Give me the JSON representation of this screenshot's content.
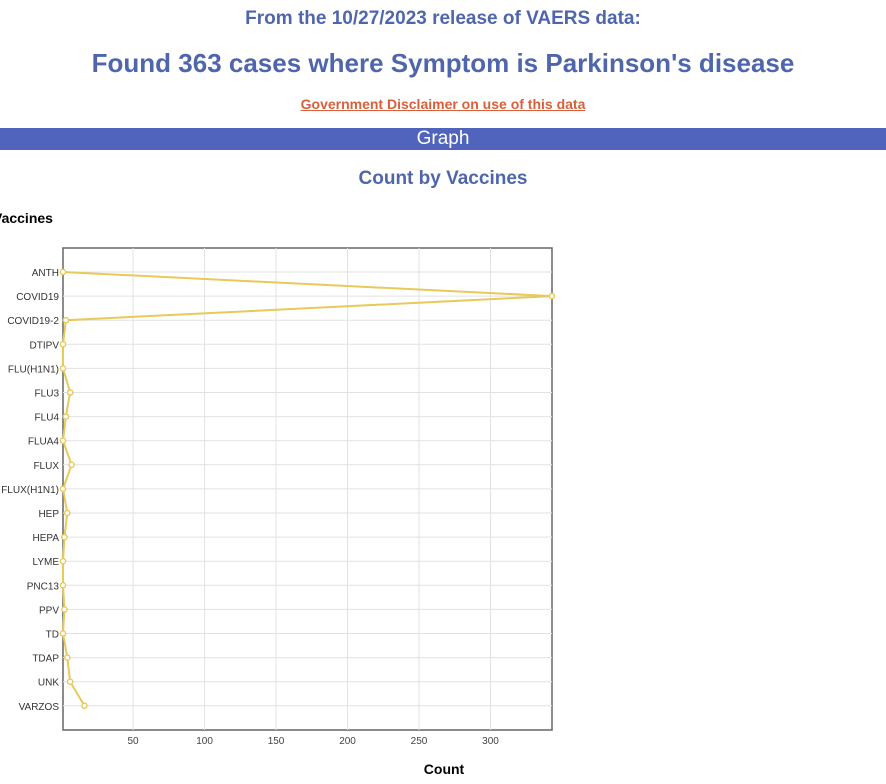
{
  "header": {
    "release_line": "From the 10/27/2023 release of VAERS data:",
    "found_line": "Found 363 cases where Symptom is Parkinson's disease",
    "disclaimer_link": "Government Disclaimer on use of this data"
  },
  "section_bar": {
    "label": "Graph"
  },
  "chart_data": {
    "type": "line",
    "title": "Count by Vaccines",
    "ylabel": "Vaccines",
    "xlabel": "Count",
    "categories": [
      "ANTH",
      "COVID19",
      "COVID19-2",
      "DTIPV",
      "FLU(H1N1)",
      "FLU3",
      "FLU4",
      "FLUA4",
      "FLUX",
      "FLUX(H1N1)",
      "HEP",
      "HEPA",
      "LYME",
      "PNC13",
      "PPV",
      "TD",
      "TDAP",
      "UNK",
      "VARZOS"
    ],
    "values": [
      1,
      343,
      3,
      1,
      1,
      6,
      3,
      1,
      7,
      1,
      4,
      2,
      1,
      1,
      2,
      1,
      4,
      6,
      16
    ],
    "xlim": [
      1,
      343
    ],
    "xticks": [
      50,
      100,
      150,
      200,
      250,
      300
    ],
    "grid": true,
    "line_color": "#e8c95a"
  }
}
